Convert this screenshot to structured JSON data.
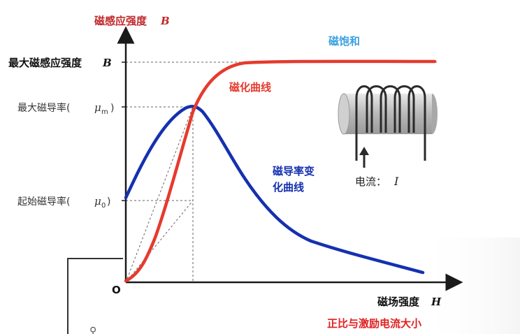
{
  "y_axis_title": "磁感应强度",
  "y_axis_symbol": "B",
  "x_axis_title": "磁场强度",
  "x_axis_symbol": "H",
  "origin_label": "O",
  "labels": {
    "max_B": "最大磁感应强度",
    "max_B_symbol": "B",
    "max_mu": "最大磁导率(",
    "max_mu_symbol": "μ",
    "max_mu_sub": "m",
    "max_mu_close": ")",
    "init_mu": "起始磁导率(",
    "init_mu_symbol": "μ",
    "init_mu_sub": "0",
    "init_mu_close": ")",
    "saturation": "磁饱和",
    "magnetization_curve": "磁化曲线",
    "permeability_curve_line1": "磁导率变",
    "permeability_curve_line2": "化曲线",
    "current_label": "电流：",
    "current_symbol": "I",
    "bottom_note": "正比与激励电流大小"
  },
  "colors": {
    "magnetization": "#e63a2e",
    "permeability": "#1530b0",
    "saturation_text": "#3aa0e0",
    "axis_title": "#c0282a",
    "bottom_note": "#e02020",
    "axis": "#1a1a1a",
    "guide": "#555555"
  },
  "icons": {
    "coil": "solenoid-coil-icon",
    "arrow": "up-arrow-icon"
  }
}
